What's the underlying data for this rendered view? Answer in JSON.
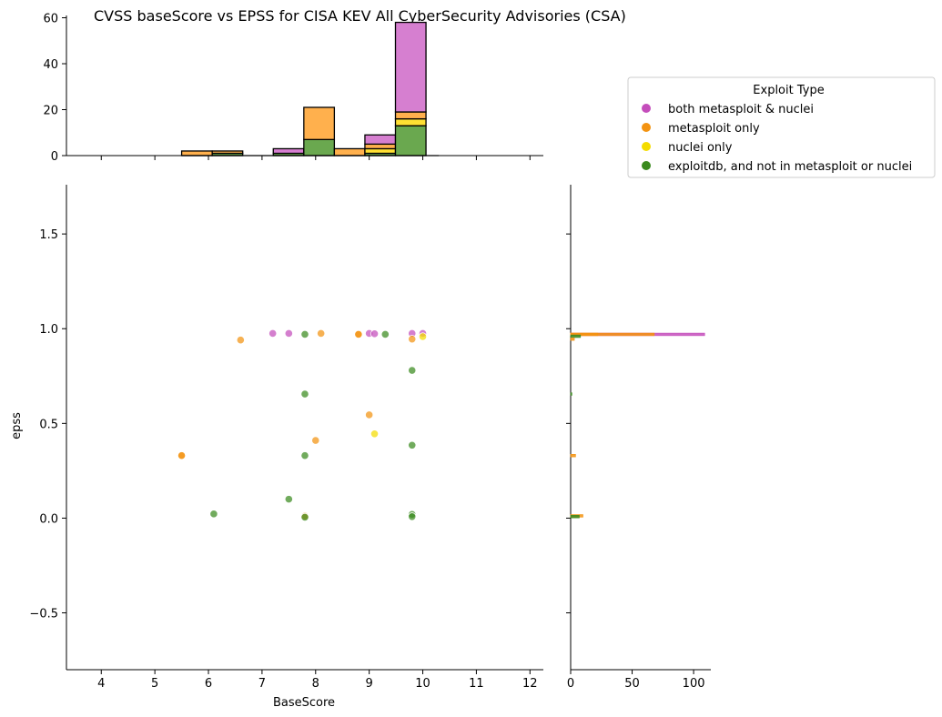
{
  "chart_data": {
    "type": "scatter",
    "title": "CVSS baseScore vs EPSS for CISA KEV All CyberSecurity Advisories (CSA)",
    "xlabel": "BaseScore",
    "ylabel": "epss",
    "xlim": [
      3.35,
      12.25
    ],
    "ylim": [
      -0.8,
      1.76
    ],
    "xticks": [
      4,
      5,
      6,
      7,
      8,
      9,
      10,
      11,
      12
    ],
    "yticks": [
      -0.5,
      0.0,
      0.5,
      1.0,
      1.5
    ],
    "xtick_labels": [
      "4",
      "5",
      "6",
      "7",
      "8",
      "9",
      "10",
      "11",
      "12"
    ],
    "ytick_labels": [
      "−0.5",
      "0.0",
      "0.5",
      "1.0",
      "1.5"
    ],
    "legend": {
      "title": "Exploit Type",
      "placement": "outside right, top",
      "entries": [
        {
          "label": "both metasploit & nuclei",
          "color": "#c44dbb"
        },
        {
          "label": "metasploit only",
          "color": "#f39311"
        },
        {
          "label": "nuclei only",
          "color": "#f4dc00"
        },
        {
          "label": "exploitdb, and not in metasploit or nuclei",
          "color": "#3a8a1e"
        }
      ]
    },
    "series": [
      {
        "name": "both metasploit & nuclei",
        "color": "#c44dbb",
        "points": [
          [
            7.2,
            0.975
          ],
          [
            7.5,
            0.975
          ],
          [
            9.0,
            0.975
          ],
          [
            9.1,
            0.973
          ],
          [
            9.8,
            0.975
          ],
          [
            10.0,
            0.975
          ]
        ]
      },
      {
        "name": "metasploit only",
        "color": "#f39311",
        "points": [
          [
            5.5,
            0.33
          ],
          [
            5.5,
            0.33
          ],
          [
            6.6,
            0.94
          ],
          [
            7.8,
            0.01
          ],
          [
            8.0,
            0.41
          ],
          [
            8.1,
            0.975
          ],
          [
            8.8,
            0.97
          ],
          [
            8.8,
            0.97
          ],
          [
            9.0,
            0.545
          ],
          [
            9.8,
            0.945
          ]
        ]
      },
      {
        "name": "nuclei only",
        "color": "#f4dc00",
        "points": [
          [
            9.1,
            0.445
          ],
          [
            10.0,
            0.958
          ]
        ]
      },
      {
        "name": "exploitdb, and not in metasploit or nuclei",
        "color": "#3a8a1e",
        "points": [
          [
            6.1,
            0.022
          ],
          [
            7.5,
            0.1
          ],
          [
            7.8,
            0.97
          ],
          [
            7.8,
            0.655
          ],
          [
            7.8,
            0.33
          ],
          [
            7.8,
            0.005
          ],
          [
            9.3,
            0.97
          ],
          [
            9.8,
            0.78
          ],
          [
            9.8,
            0.385
          ],
          [
            9.8,
            0.02
          ],
          [
            9.8,
            0.008
          ]
        ]
      }
    ],
    "top_histogram": {
      "type": "bar",
      "stacked": true,
      "ylim": [
        0,
        61
      ],
      "yticks": [
        0,
        20,
        40,
        60
      ],
      "ytick_labels": [
        "0",
        "20",
        "40",
        "60"
      ],
      "bin_edges": [
        5.5,
        6.07,
        6.64,
        7.21,
        7.78,
        8.35,
        8.92,
        9.49,
        10.06
      ],
      "series": [
        {
          "name": "exploitdb, and not in metasploit or nuclei",
          "color": "#6aa84f",
          "values": [
            0,
            1,
            0,
            1,
            7,
            0,
            1,
            13
          ]
        },
        {
          "name": "nuclei only",
          "color": "#ffe033",
          "values": [
            0,
            0,
            0,
            0,
            0,
            0,
            2,
            3
          ]
        },
        {
          "name": "metasploit only",
          "color": "#ffb04d",
          "values": [
            2,
            1,
            0,
            0,
            14,
            3,
            2,
            3
          ]
        },
        {
          "name": "both metasploit & nuclei",
          "color": "#d67fd0",
          "values": [
            0,
            0,
            0,
            2,
            0,
            0,
            4,
            39
          ]
        }
      ]
    },
    "right_histogram": {
      "type": "bar",
      "stacked": true,
      "orientation": "horizontal",
      "xlim": [
        0,
        114
      ],
      "xticks": [
        0,
        50,
        100
      ],
      "xtick_labels": [
        "0",
        "50",
        "100"
      ],
      "bars": [
        {
          "y": 0.97,
          "color": "#c44dbb",
          "value": 109
        },
        {
          "y": 0.97,
          "color": "#f39311",
          "value": 68
        },
        {
          "y": 0.97,
          "color": "#f39311",
          "value": 22
        },
        {
          "y": 0.96,
          "color": "#3a8a1e",
          "value": 8
        },
        {
          "y": 0.945,
          "color": "#f39311",
          "value": 3
        },
        {
          "y": 0.655,
          "color": "#3a8a1e",
          "value": 1
        },
        {
          "y": 0.33,
          "color": "#f39311",
          "value": 4
        },
        {
          "y": 0.012,
          "color": "#f39311",
          "value": 10
        },
        {
          "y": 0.008,
          "color": "#3a8a1e",
          "value": 7
        }
      ]
    }
  }
}
